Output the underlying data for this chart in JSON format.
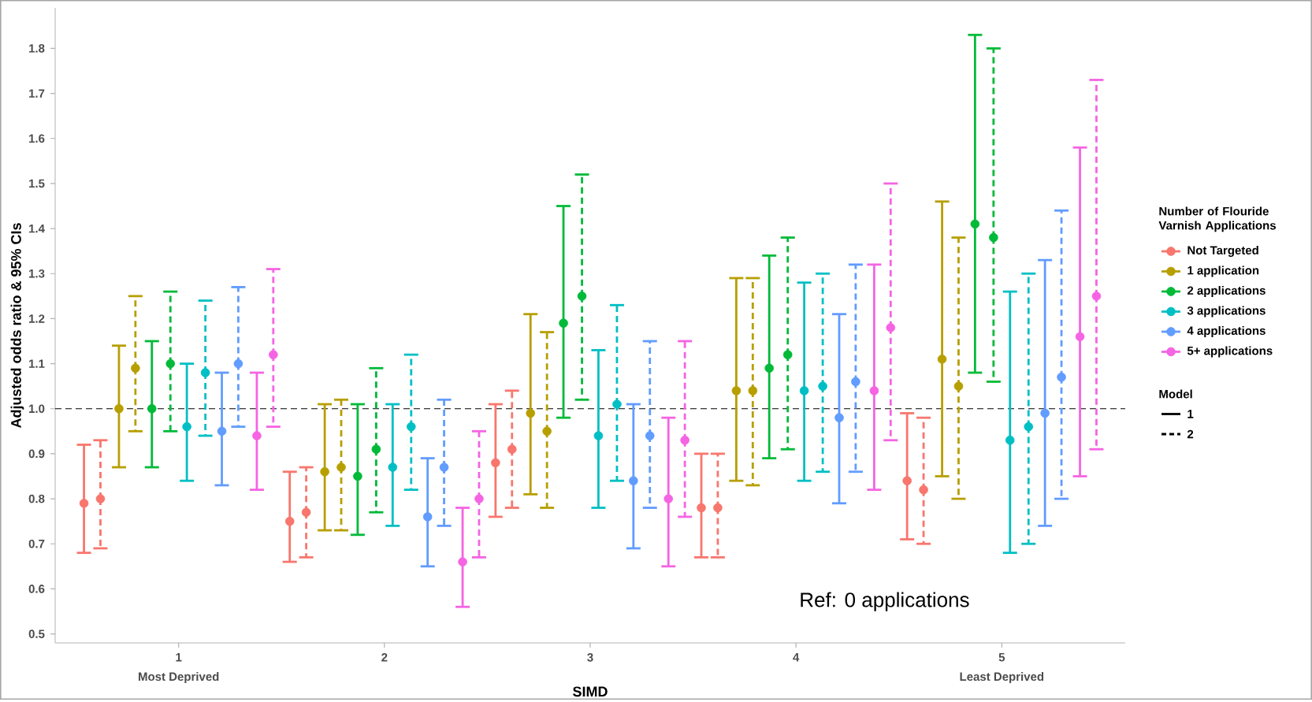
{
  "chart_data": {
    "type": "scatter",
    "marker": "circle",
    "xlabel": "SIMD",
    "ylabel": "Adjusted odds ratio & 95% CIs",
    "legend": "right",
    "legend_title": "Number of Flouride Varnish Applications",
    "xlim": [
      0.4,
      5.6
    ],
    "xticks": [
      1,
      2,
      3,
      4,
      5
    ],
    "ylim": [
      0.48,
      1.89
    ],
    "yticks": [
      {
        "value": 0.5,
        "label": "0.5"
      },
      {
        "value": 0.6,
        "label": "0.6"
      },
      {
        "value": 0.7,
        "label": "0.7"
      },
      {
        "value": 0.8,
        "label": "0.8"
      },
      {
        "value": 0.9,
        "label": "0.9"
      },
      {
        "value": 1.0,
        "label": "1.0"
      },
      {
        "value": 1.1,
        "label": "1.1"
      },
      {
        "value": 1.2,
        "label": "1.2"
      },
      {
        "value": 1.3,
        "label": "1.3"
      },
      {
        "value": 1.4,
        "label": "1.4"
      },
      {
        "value": 1.5,
        "label": "1.5"
      },
      {
        "value": 1.6,
        "label": "1.6"
      },
      {
        "value": 1.7,
        "label": "1.7"
      },
      {
        "value": 1.8,
        "label": "1.8"
      }
    ],
    "ref_lines": [
      {
        "axis": "y",
        "value": 1.0,
        "color": "#000000",
        "line_style": "dashed"
      }
    ],
    "annotations": [
      "Most Deprived",
      "Least Deprived",
      "Ref: 0 applications",
      "Model",
      "1",
      "2"
    ],
    "series": [
      {
        "name": "Not Targeted",
        "color": "#F8766D",
        "line_style": "solid",
        "x": [
          0.54,
          1.54,
          2.54,
          3.54,
          4.54
        ],
        "values": [
          0.79,
          0.75,
          0.88,
          0.78,
          0.84
        ],
        "errors": [
          [
            0.68,
            0.92
          ],
          [
            0.66,
            0.86
          ],
          [
            0.76,
            1.01
          ],
          [
            0.67,
            0.9
          ],
          [
            0.71,
            0.99
          ]
        ]
      },
      {
        "color": "#F8766D",
        "line_style": "dashed",
        "x": [
          0.62,
          1.62,
          2.62,
          3.62,
          4.62
        ],
        "values": [
          0.8,
          0.77,
          0.91,
          0.78,
          0.82
        ],
        "errors": [
          [
            0.69,
            0.93
          ],
          [
            0.67,
            0.87
          ],
          [
            0.78,
            1.04
          ],
          [
            0.67,
            0.9
          ],
          [
            0.7,
            0.98
          ]
        ]
      },
      {
        "name": "1 application",
        "color": "#B79F00",
        "line_style": "solid",
        "x": [
          0.71,
          1.71,
          2.71,
          3.71,
          4.71
        ],
        "values": [
          1.0,
          0.86,
          0.99,
          1.04,
          1.11
        ],
        "errors": [
          [
            0.87,
            1.14
          ],
          [
            0.73,
            1.01
          ],
          [
            0.81,
            1.21
          ],
          [
            0.84,
            1.29
          ],
          [
            0.85,
            1.46
          ]
        ]
      },
      {
        "color": "#B79F00",
        "line_style": "dashed",
        "x": [
          0.79,
          1.79,
          2.79,
          3.79,
          4.79
        ],
        "values": [
          1.09,
          0.87,
          0.95,
          1.04,
          1.05
        ],
        "errors": [
          [
            0.95,
            1.25
          ],
          [
            0.73,
            1.02
          ],
          [
            0.78,
            1.17
          ],
          [
            0.83,
            1.29
          ],
          [
            0.8,
            1.38
          ]
        ]
      },
      {
        "name": "2 applications",
        "color": "#00BA38",
        "line_style": "solid",
        "x": [
          0.87,
          1.87,
          2.87,
          3.87,
          4.87
        ],
        "values": [
          1.0,
          0.85,
          1.19,
          1.09,
          1.41
        ],
        "errors": [
          [
            0.87,
            1.15
          ],
          [
            0.72,
            1.01
          ],
          [
            0.98,
            1.45
          ],
          [
            0.89,
            1.34
          ],
          [
            1.08,
            1.83
          ]
        ]
      },
      {
        "color": "#00BA38",
        "line_style": "dashed",
        "x": [
          0.96,
          1.96,
          2.96,
          3.96,
          4.96
        ],
        "values": [
          1.1,
          0.91,
          1.25,
          1.12,
          1.38
        ],
        "errors": [
          [
            0.95,
            1.26
          ],
          [
            0.77,
            1.09
          ],
          [
            1.02,
            1.52
          ],
          [
            0.91,
            1.38
          ],
          [
            1.06,
            1.8
          ]
        ]
      },
      {
        "name": "3 applications",
        "color": "#00BFC4",
        "line_style": "solid",
        "x": [
          1.04,
          2.04,
          3.04,
          4.04,
          5.04
        ],
        "values": [
          0.96,
          0.87,
          0.94,
          1.04,
          0.93
        ],
        "errors": [
          [
            0.84,
            1.1
          ],
          [
            0.74,
            1.01
          ],
          [
            0.78,
            1.13
          ],
          [
            0.84,
            1.28
          ],
          [
            0.68,
            1.26
          ]
        ]
      },
      {
        "color": "#00BFC4",
        "line_style": "dashed",
        "x": [
          1.13,
          2.13,
          3.13,
          4.13,
          5.13
        ],
        "values": [
          1.08,
          0.96,
          1.01,
          1.05,
          0.96
        ],
        "errors": [
          [
            0.94,
            1.24
          ],
          [
            0.82,
            1.12
          ],
          [
            0.84,
            1.23
          ],
          [
            0.86,
            1.3
          ],
          [
            0.7,
            1.3
          ]
        ]
      },
      {
        "name": "4 applications",
        "color": "#619CFF",
        "line_style": "solid",
        "x": [
          1.21,
          2.21,
          3.21,
          4.21,
          5.21
        ],
        "values": [
          0.95,
          0.76,
          0.84,
          0.98,
          0.99
        ],
        "errors": [
          [
            0.83,
            1.08
          ],
          [
            0.65,
            0.89
          ],
          [
            0.69,
            1.01
          ],
          [
            0.79,
            1.21
          ],
          [
            0.74,
            1.33
          ]
        ]
      },
      {
        "color": "#619CFF",
        "line_style": "dashed",
        "x": [
          1.29,
          2.29,
          3.29,
          4.29,
          5.29
        ],
        "values": [
          1.1,
          0.87,
          0.94,
          1.06,
          1.07
        ],
        "errors": [
          [
            0.96,
            1.27
          ],
          [
            0.74,
            1.02
          ],
          [
            0.78,
            1.15
          ],
          [
            0.86,
            1.32
          ],
          [
            0.8,
            1.44
          ]
        ]
      },
      {
        "name": "5+ applications",
        "color": "#F564E3",
        "line_style": "solid",
        "x": [
          1.38,
          2.38,
          3.38,
          4.38,
          5.38
        ],
        "values": [
          0.94,
          0.66,
          0.8,
          1.04,
          1.16
        ],
        "errors": [
          [
            0.82,
            1.08
          ],
          [
            0.56,
            0.78
          ],
          [
            0.65,
            0.98
          ],
          [
            0.82,
            1.32
          ],
          [
            0.85,
            1.58
          ]
        ]
      },
      {
        "color": "#F564E3",
        "line_style": "dashed",
        "x": [
          1.46,
          2.46,
          3.46,
          4.46,
          5.46
        ],
        "values": [
          1.12,
          0.8,
          0.93,
          1.18,
          1.25
        ],
        "errors": [
          [
            0.96,
            1.31
          ],
          [
            0.67,
            0.95
          ],
          [
            0.76,
            1.15
          ],
          [
            0.93,
            1.5
          ],
          [
            0.91,
            1.73
          ]
        ]
      }
    ]
  }
}
